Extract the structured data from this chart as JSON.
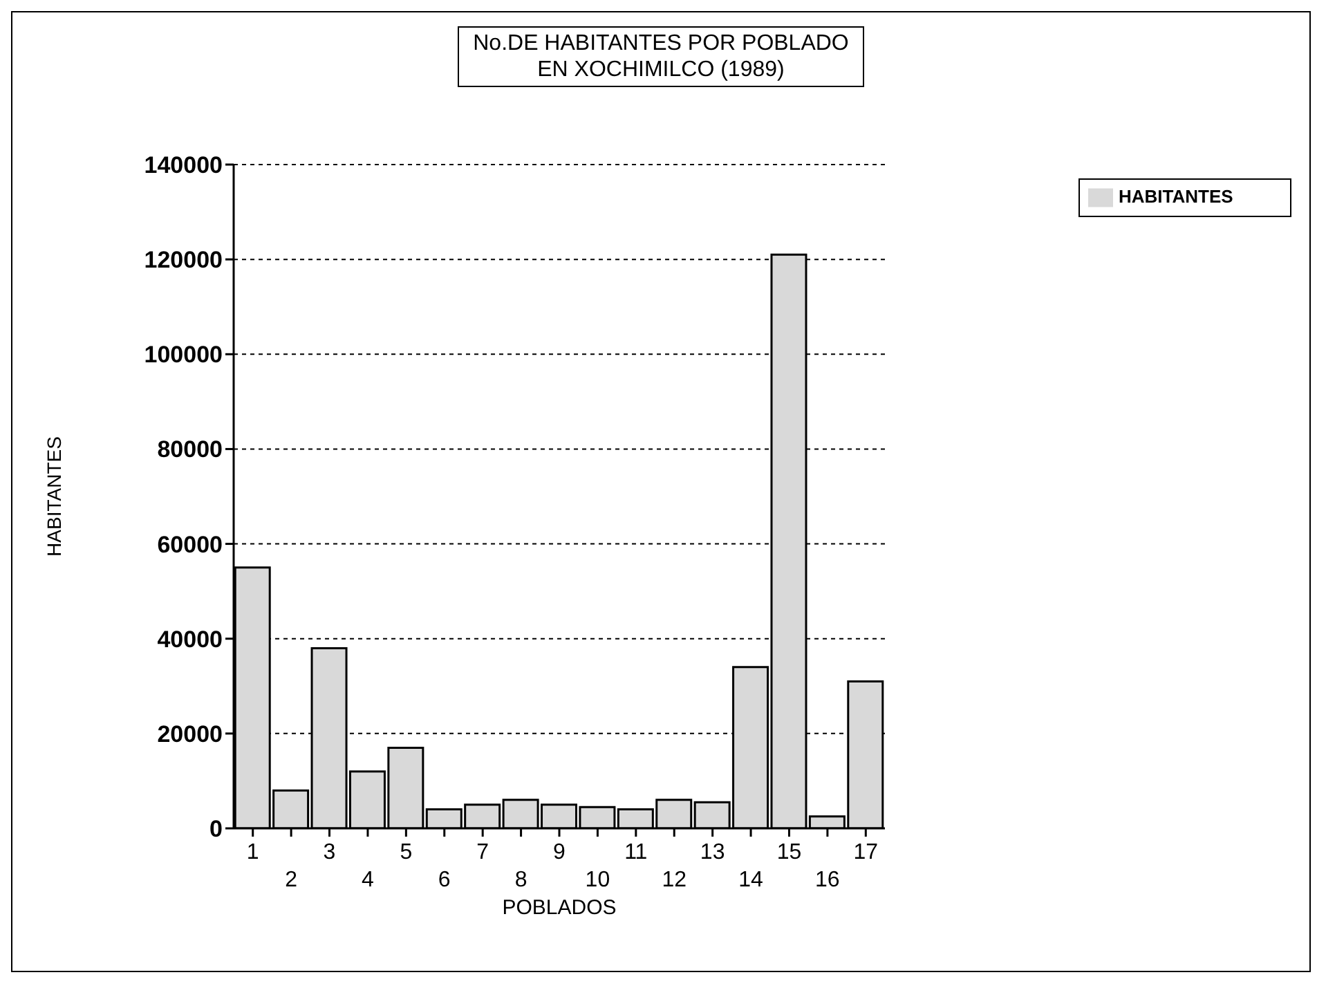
{
  "chart_data": {
    "type": "bar",
    "title": "No.DE HABITANTES POR POBLADO\nEN XOCHIMILCO (1989)",
    "xlabel": "POBLADOS",
    "ylabel": "HABITANTES",
    "categories": [
      "1",
      "2",
      "3",
      "4",
      "5",
      "6",
      "7",
      "8",
      "9",
      "10",
      "11",
      "12",
      "13",
      "14",
      "15",
      "16",
      "17"
    ],
    "series": [
      {
        "name": "HABITANTES",
        "color": "#d9d9d9",
        "values": [
          55000,
          8000,
          38000,
          12000,
          17000,
          4000,
          5000,
          6000,
          5000,
          4500,
          4000,
          6000,
          5500,
          34000,
          121000,
          2500,
          31000
        ]
      }
    ],
    "ylim": [
      0,
      140000
    ],
    "yticks": [
      0,
      20000,
      40000,
      60000,
      80000,
      100000,
      120000,
      140000
    ],
    "grid": "y",
    "legend": "top right"
  }
}
